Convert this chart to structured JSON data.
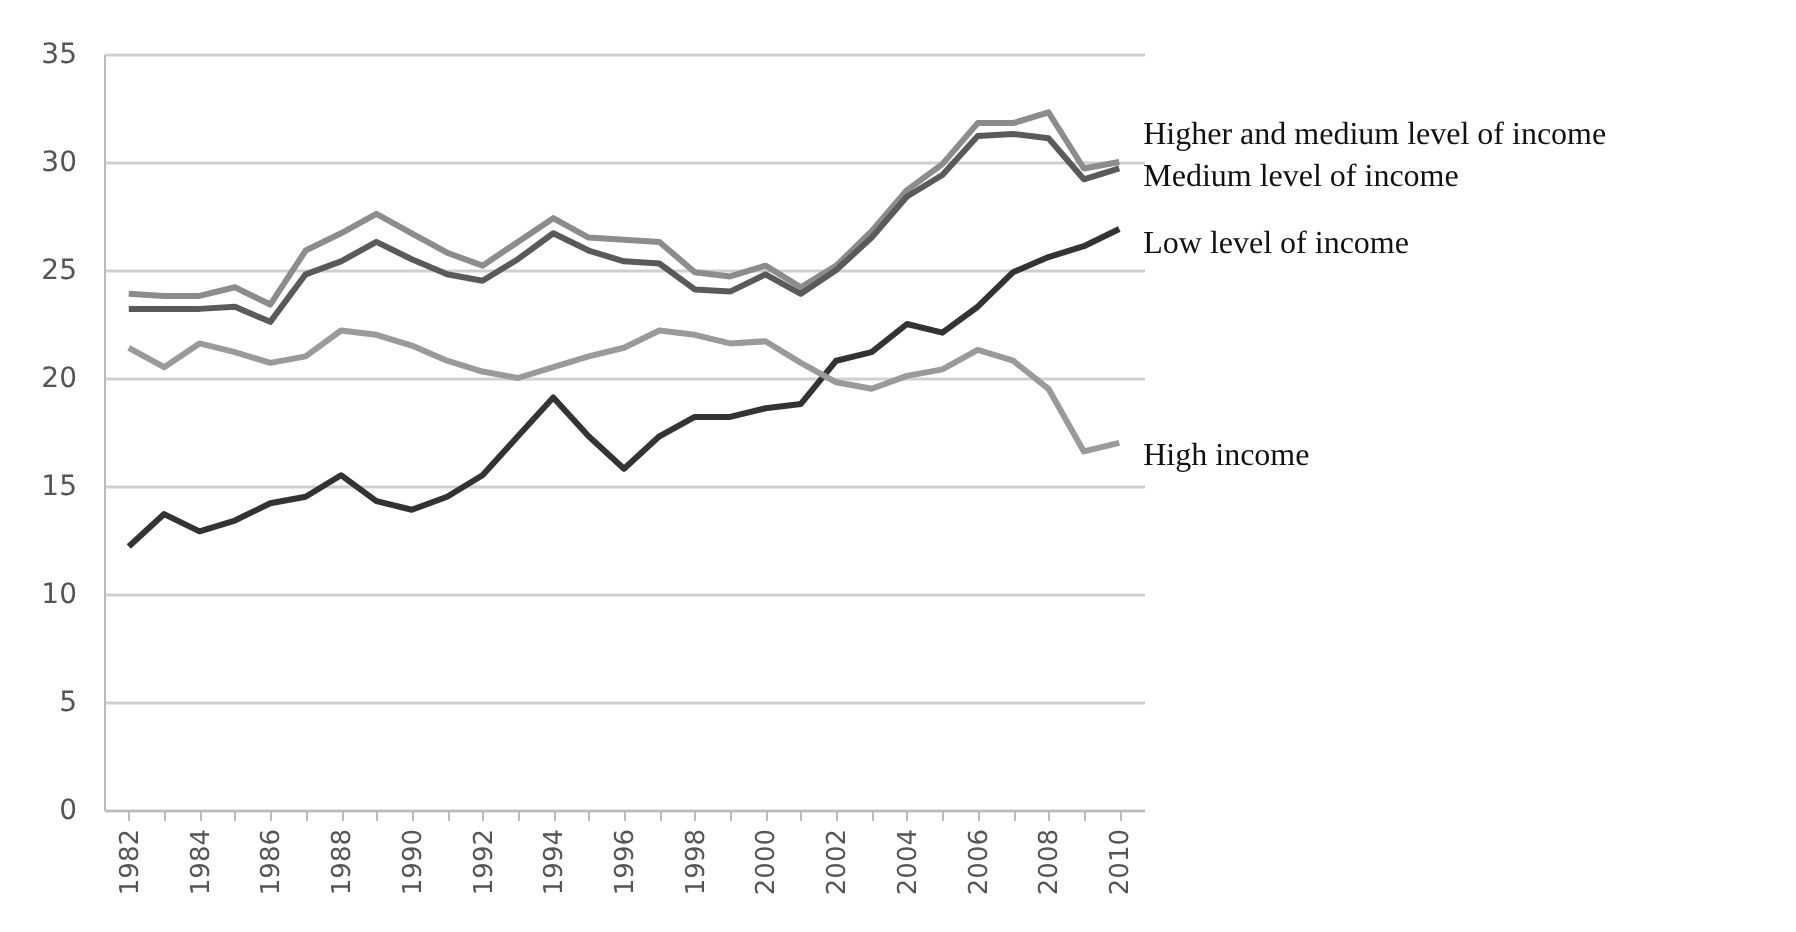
{
  "chart_data": {
    "type": "line",
    "categories": [
      "1982",
      null,
      "1984",
      null,
      "1986",
      null,
      "1988",
      null,
      "1990",
      null,
      "1992",
      null,
      "1994",
      null,
      "1996",
      null,
      "1998",
      null,
      "2000",
      null,
      "2002",
      null,
      "2004",
      null,
      "2006",
      null,
      "2008",
      null,
      "2010"
    ],
    "series": [
      {
        "name": "Higher and medium level of income",
        "color": "#8c8c8c",
        "values": [
          23.9,
          23.8,
          23.8,
          24.2,
          23.4,
          25.9,
          26.7,
          27.6,
          26.7,
          25.8,
          25.2,
          26.3,
          27.4,
          26.5,
          26.4,
          26.3,
          24.9,
          24.7,
          25.2,
          24.2,
          25.2,
          26.8,
          28.7,
          29.9,
          31.8,
          31.8,
          32.3,
          29.7,
          30.0
        ]
      },
      {
        "name": "Medium level of income",
        "color": "#5a5a5a",
        "values": [
          23.2,
          23.2,
          23.2,
          23.3,
          22.6,
          24.8,
          25.4,
          26.3,
          25.5,
          24.8,
          24.5,
          25.5,
          26.7,
          25.9,
          25.4,
          25.3,
          24.1,
          24.0,
          24.8,
          23.9,
          25.0,
          26.5,
          28.4,
          29.4,
          31.2,
          31.3,
          31.1,
          29.2,
          29.7
        ]
      },
      {
        "name": "Low level of income",
        "color": "#333333",
        "values": [
          12.2,
          13.7,
          12.9,
          13.4,
          14.2,
          14.5,
          15.5,
          14.3,
          13.9,
          14.5,
          15.5,
          17.3,
          19.1,
          17.3,
          15.8,
          17.3,
          18.2,
          18.2,
          18.6,
          18.8,
          20.8,
          21.2,
          22.5,
          22.1,
          23.3,
          24.9,
          25.6,
          26.1,
          26.9
        ]
      },
      {
        "name": "High income",
        "color": "#9a9a9a",
        "values": [
          21.4,
          20.5,
          21.6,
          21.2,
          20.7,
          21.0,
          22.2,
          22.0,
          21.5,
          20.8,
          20.3,
          20.0,
          20.5,
          21.0,
          21.4,
          22.2,
          22.0,
          21.6,
          21.7,
          20.7,
          19.8,
          19.5,
          20.1,
          20.4,
          21.3,
          20.8,
          19.5,
          16.6,
          17.0
        ]
      }
    ],
    "ylim": [
      0,
      35
    ],
    "yticks": [
      0,
      5,
      10,
      15,
      20,
      25,
      30,
      35
    ],
    "grid": "y",
    "legend": false
  }
}
